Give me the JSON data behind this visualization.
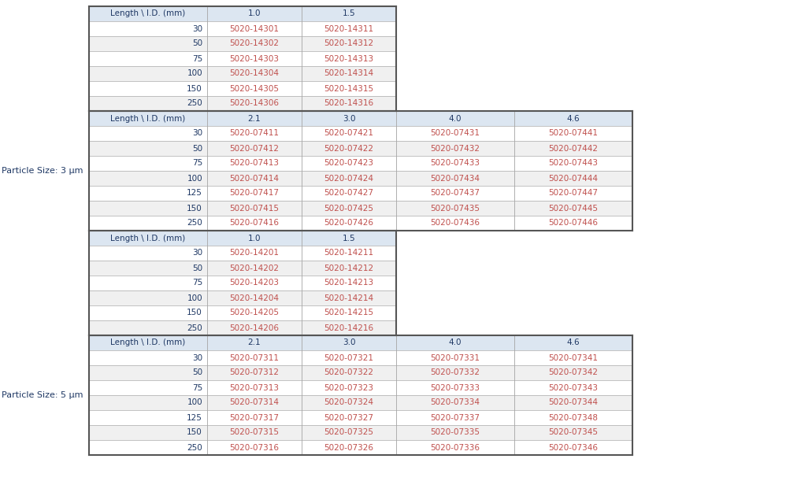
{
  "bg_color": "#ffffff",
  "header_bg": "#dce6f1",
  "row_bg_light": "#ffffff",
  "row_bg_dark": "#f0f0f0",
  "label_color": "#1f3864",
  "sku_color": "#c0504d",
  "header_text_color": "#1f3864",
  "border_color": "#aaaaaa",
  "thick_border_color": "#555555",
  "left_label_color": "#1f3864",
  "sections": [
    {
      "header_cols": [
        "Length \\ I.D. (mm)",
        "1.0",
        "1.5",
        "",
        ""
      ],
      "cols_active": [
        true,
        true,
        true,
        false,
        false
      ],
      "particle_label": null,
      "rows": [
        [
          "30",
          "5020-14301",
          "5020-14311",
          "",
          ""
        ],
        [
          "50",
          "5020-14302",
          "5020-14312",
          "",
          ""
        ],
        [
          "75",
          "5020-14303",
          "5020-14313",
          "",
          ""
        ],
        [
          "100",
          "5020-14304",
          "5020-14314",
          "",
          ""
        ],
        [
          "150",
          "5020-14305",
          "5020-14315",
          "",
          ""
        ],
        [
          "250",
          "5020-14306",
          "5020-14316",
          "",
          ""
        ]
      ]
    },
    {
      "header_cols": [
        "Length \\ I.D. (mm)",
        "2.1",
        "3.0",
        "4.0",
        "4.6"
      ],
      "cols_active": [
        true,
        true,
        true,
        true,
        true
      ],
      "particle_label": "Particle Size: 3 μm",
      "rows": [
        [
          "30",
          "5020-07411",
          "5020-07421",
          "5020-07431",
          "5020-07441"
        ],
        [
          "50",
          "5020-07412",
          "5020-07422",
          "5020-07432",
          "5020-07442"
        ],
        [
          "75",
          "5020-07413",
          "5020-07423",
          "5020-07433",
          "5020-07443"
        ],
        [
          "100",
          "5020-07414",
          "5020-07424",
          "5020-07434",
          "5020-07444"
        ],
        [
          "125",
          "5020-07417",
          "5020-07427",
          "5020-07437",
          "5020-07447"
        ],
        [
          "150",
          "5020-07415",
          "5020-07425",
          "5020-07435",
          "5020-07445"
        ],
        [
          "250",
          "5020-07416",
          "5020-07426",
          "5020-07436",
          "5020-07446"
        ]
      ]
    },
    {
      "header_cols": [
        "Length \\ I.D. (mm)",
        "1.0",
        "1.5",
        "",
        ""
      ],
      "cols_active": [
        true,
        true,
        true,
        false,
        false
      ],
      "particle_label": null,
      "rows": [
        [
          "30",
          "5020-14201",
          "5020-14211",
          "",
          ""
        ],
        [
          "50",
          "5020-14202",
          "5020-14212",
          "",
          ""
        ],
        [
          "75",
          "5020-14203",
          "5020-14213",
          "",
          ""
        ],
        [
          "100",
          "5020-14204",
          "5020-14214",
          "",
          ""
        ],
        [
          "150",
          "5020-14205",
          "5020-14215",
          "",
          ""
        ],
        [
          "250",
          "5020-14206",
          "5020-14216",
          "",
          ""
        ]
      ]
    },
    {
      "header_cols": [
        "Length \\ I.D. (mm)",
        "2.1",
        "3.0",
        "4.0",
        "4.6"
      ],
      "cols_active": [
        true,
        true,
        true,
        true,
        true
      ],
      "particle_label": "Particle Size: 5 μm",
      "rows": [
        [
          "30",
          "5020-07311",
          "5020-07321",
          "5020-07331",
          "5020-07341"
        ],
        [
          "50",
          "5020-07312",
          "5020-07322",
          "5020-07332",
          "5020-07342"
        ],
        [
          "75",
          "5020-07313",
          "5020-07323",
          "5020-07333",
          "5020-07343"
        ],
        [
          "100",
          "5020-07314",
          "5020-07324",
          "5020-07334",
          "5020-07344"
        ],
        [
          "125",
          "5020-07317",
          "5020-07327",
          "5020-07337",
          "5020-07348"
        ],
        [
          "150",
          "5020-07315",
          "5020-07325",
          "5020-07335",
          "5020-07345"
        ],
        [
          "250",
          "5020-07316",
          "5020-07326",
          "5020-07336",
          "5020-07346"
        ]
      ]
    }
  ]
}
